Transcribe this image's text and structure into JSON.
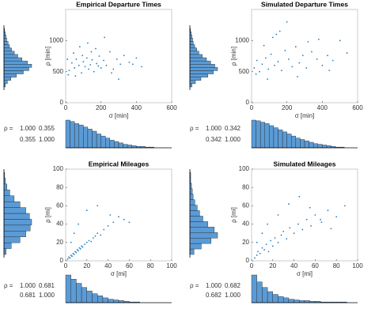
{
  "chart_data": [
    {
      "type": "scatter",
      "title": "Empirical Departure Times",
      "xlabel": "σ  [min]",
      "ylabel": "ρ  [min]",
      "xlim": [
        0,
        600
      ],
      "ylim": [
        0,
        1500
      ],
      "xticks": [
        0,
        200,
        400,
        600
      ],
      "yticks": [
        0,
        500,
        1000
      ],
      "color": "#1f7fc4",
      "x": [
        20,
        35,
        50,
        60,
        75,
        90,
        100,
        110,
        120,
        130,
        140,
        150,
        160,
        175,
        190,
        200,
        215,
        230,
        250,
        270,
        290,
        310,
        330,
        360,
        400,
        430,
        15,
        45,
        80,
        125,
        170,
        220,
        260,
        300,
        380,
        10,
        55,
        95,
        145,
        185
      ],
      "y": [
        520,
        640,
        560,
        700,
        600,
        480,
        660,
        580,
        720,
        540,
        610,
        690,
        500,
        630,
        750,
        560,
        680,
        600,
        820,
        540,
        700,
        620,
        760,
        650,
        720,
        580,
        450,
        800,
        900,
        960,
        870,
        1050,
        480,
        380,
        620,
        700,
        430,
        760,
        820,
        590
      ],
      "hist_color": "#5b9bd5",
      "hist_y": {
        "bins": [
          300,
          350,
          400,
          450,
          500,
          550,
          600,
          650,
          700,
          750,
          800,
          850,
          900,
          950,
          1000,
          1050,
          1100,
          1150,
          1200
        ],
        "counts": [
          2,
          5,
          10,
          18,
          28,
          36,
          40,
          34,
          26,
          20,
          15,
          11,
          8,
          6,
          4,
          3,
          2,
          1
        ]
      },
      "hist_x": {
        "bins": [
          0,
          25,
          50,
          75,
          100,
          125,
          150,
          175,
          200,
          225,
          250,
          275,
          300,
          325,
          350,
          375,
          400,
          425,
          450,
          475,
          500
        ],
        "counts": [
          40,
          38,
          35,
          33,
          30,
          27,
          24,
          20,
          17,
          14,
          11,
          9,
          7,
          5,
          4,
          3,
          2,
          2,
          1,
          1
        ]
      },
      "corr_label": "ρ =",
      "corr": [
        [
          {
            "value": 1,
            "label": "1.000"
          },
          0.355
        ],
        [
          0.355,
          {
            "value": 1,
            "label": "1.000"
          }
        ]
      ]
    },
    {
      "type": "scatter",
      "title": "Simulated Departure Times",
      "xlabel": "σ  [min]",
      "ylabel": "ρ  [min]",
      "xlim": [
        0,
        600
      ],
      "ylim": [
        0,
        1500
      ],
      "xticks": [
        0,
        200,
        400,
        600
      ],
      "yticks": [
        0,
        500,
        1000
      ],
      "color": "#1f7fc4",
      "x": [
        15,
        30,
        45,
        60,
        80,
        95,
        110,
        130,
        150,
        170,
        190,
        210,
        230,
        250,
        270,
        290,
        310,
        340,
        370,
        400,
        430,
        460,
        500,
        540,
        25,
        70,
        120,
        160,
        200,
        260,
        320,
        380,
        440,
        90,
        140
      ],
      "y": [
        560,
        680,
        500,
        620,
        720,
        540,
        780,
        600,
        660,
        520,
        840,
        700,
        580,
        900,
        640,
        760,
        560,
        820,
        700,
        600,
        760,
        680,
        1000,
        800,
        460,
        920,
        1050,
        1150,
        1300,
        420,
        980,
        1020,
        520,
        380,
        1100
      ],
      "hist_color": "#5b9bd5",
      "hist_y": {
        "bins": [
          300,
          350,
          400,
          450,
          500,
          550,
          600,
          650,
          700,
          750,
          800,
          850,
          900,
          950,
          1000,
          1050,
          1100,
          1150,
          1200
        ],
        "counts": [
          3,
          8,
          16,
          26,
          34,
          40,
          36,
          30,
          24,
          18,
          13,
          10,
          7,
          5,
          4,
          3,
          2,
          1
        ]
      },
      "hist_x": {
        "bins": [
          0,
          25,
          50,
          75,
          100,
          125,
          150,
          175,
          200,
          225,
          250,
          275,
          300,
          325,
          350,
          375,
          400,
          425,
          450,
          475,
          500,
          525
        ],
        "counts": [
          40,
          39,
          37,
          35,
          32,
          29,
          26,
          23,
          20,
          17,
          14,
          12,
          10,
          8,
          6,
          5,
          4,
          3,
          2,
          1,
          1
        ]
      },
      "corr_label": "ρ =",
      "corr": [
        [
          {
            "value": 1,
            "label": "1.000"
          },
          0.342
        ],
        [
          0.342,
          {
            "value": 1,
            "label": "1.000"
          }
        ]
      ]
    },
    {
      "type": "scatter",
      "title": "Empirical Mileages",
      "xlabel": "σ  [mi]",
      "ylabel": "ρ  [mi]",
      "xlim": [
        0,
        100
      ],
      "ylim": [
        0,
        100
      ],
      "xticks": [
        0,
        20,
        40,
        60,
        80,
        100
      ],
      "yticks": [
        0,
        20,
        40,
        60,
        80,
        100
      ],
      "color": "#1f7fc4",
      "x": [
        2,
        3,
        4,
        5,
        6,
        7,
        8,
        9,
        10,
        11,
        12,
        13,
        14,
        15,
        16,
        18,
        20,
        22,
        24,
        26,
        28,
        30,
        33,
        36,
        40,
        45,
        50,
        55,
        5,
        8,
        12,
        20,
        30,
        42,
        60
      ],
      "y": [
        2,
        4,
        3,
        6,
        5,
        8,
        7,
        10,
        9,
        12,
        11,
        14,
        13,
        16,
        15,
        18,
        20,
        22,
        21,
        25,
        27,
        30,
        28,
        34,
        38,
        42,
        48,
        45,
        20,
        30,
        40,
        55,
        60,
        50,
        42
      ],
      "hist_color": "#5b9bd5",
      "hist_y": {
        "bins": [
          0,
          5,
          10,
          15,
          20,
          25,
          30,
          35,
          40,
          45,
          50,
          55,
          60,
          65,
          70
        ],
        "counts": [
          3,
          10,
          22,
          30,
          36,
          38,
          35,
          30,
          22,
          14,
          8,
          4,
          2,
          1
        ]
      },
      "hist_x": {
        "bins": [
          0,
          5,
          10,
          15,
          20,
          25,
          30,
          35,
          40,
          45,
          50,
          55,
          60,
          65,
          70
        ],
        "counts": [
          40,
          34,
          28,
          22,
          17,
          13,
          10,
          7,
          5,
          4,
          3,
          2,
          1,
          1
        ]
      },
      "corr_label": "ρ =",
      "corr": [
        [
          {
            "value": 1,
            "label": "1.000"
          },
          0.681
        ],
        [
          0.681,
          {
            "value": 1,
            "label": "1.000"
          }
        ]
      ]
    },
    {
      "type": "scatter",
      "title": "Simulated Mileages",
      "xlabel": "σ  [mi]",
      "ylabel": "ρ  [mi]",
      "xlim": [
        0,
        100
      ],
      "ylim": [
        0,
        100
      ],
      "xticks": [
        0,
        20,
        40,
        60,
        80,
        100
      ],
      "yticks": [
        0,
        20,
        40,
        60,
        80,
        100
      ],
      "color": "#1f7fc4",
      "x": [
        3,
        5,
        6,
        8,
        10,
        12,
        14,
        16,
        18,
        20,
        22,
        25,
        28,
        30,
        33,
        36,
        40,
        44,
        48,
        52,
        56,
        60,
        66,
        72,
        80,
        88,
        5,
        10,
        15,
        25,
        35,
        45,
        55,
        65,
        75
      ],
      "y": [
        3,
        6,
        10,
        8,
        14,
        12,
        18,
        10,
        22,
        16,
        25,
        20,
        28,
        32,
        24,
        36,
        30,
        40,
        34,
        45,
        38,
        50,
        42,
        55,
        48,
        60,
        20,
        30,
        40,
        50,
        62,
        70,
        58,
        45,
        35
      ],
      "hist_color": "#5b9bd5",
      "hist_y": {
        "bins": [
          0,
          6,
          12,
          18,
          24,
          30,
          36,
          42,
          48,
          54,
          60,
          66,
          72,
          78,
          84,
          90
        ],
        "counts": [
          5,
          14,
          26,
          34,
          30,
          22,
          16,
          12,
          9,
          6,
          4,
          3,
          2,
          1,
          1
        ]
      },
      "hist_x": {
        "bins": [
          0,
          5,
          10,
          15,
          20,
          25,
          30,
          35,
          40,
          45,
          50,
          55,
          60,
          65,
          70,
          75,
          80,
          85,
          90
        ],
        "counts": [
          40,
          30,
          22,
          16,
          12,
          9,
          7,
          5,
          4,
          3,
          3,
          2,
          2,
          1,
          1,
          1,
          1,
          1
        ]
      },
      "corr_label": "ρ =",
      "corr": [
        [
          {
            "value": 1,
            "label": "1.000"
          },
          0.682
        ],
        [
          0.682,
          {
            "value": 1,
            "label": "1.000"
          }
        ]
      ]
    }
  ]
}
